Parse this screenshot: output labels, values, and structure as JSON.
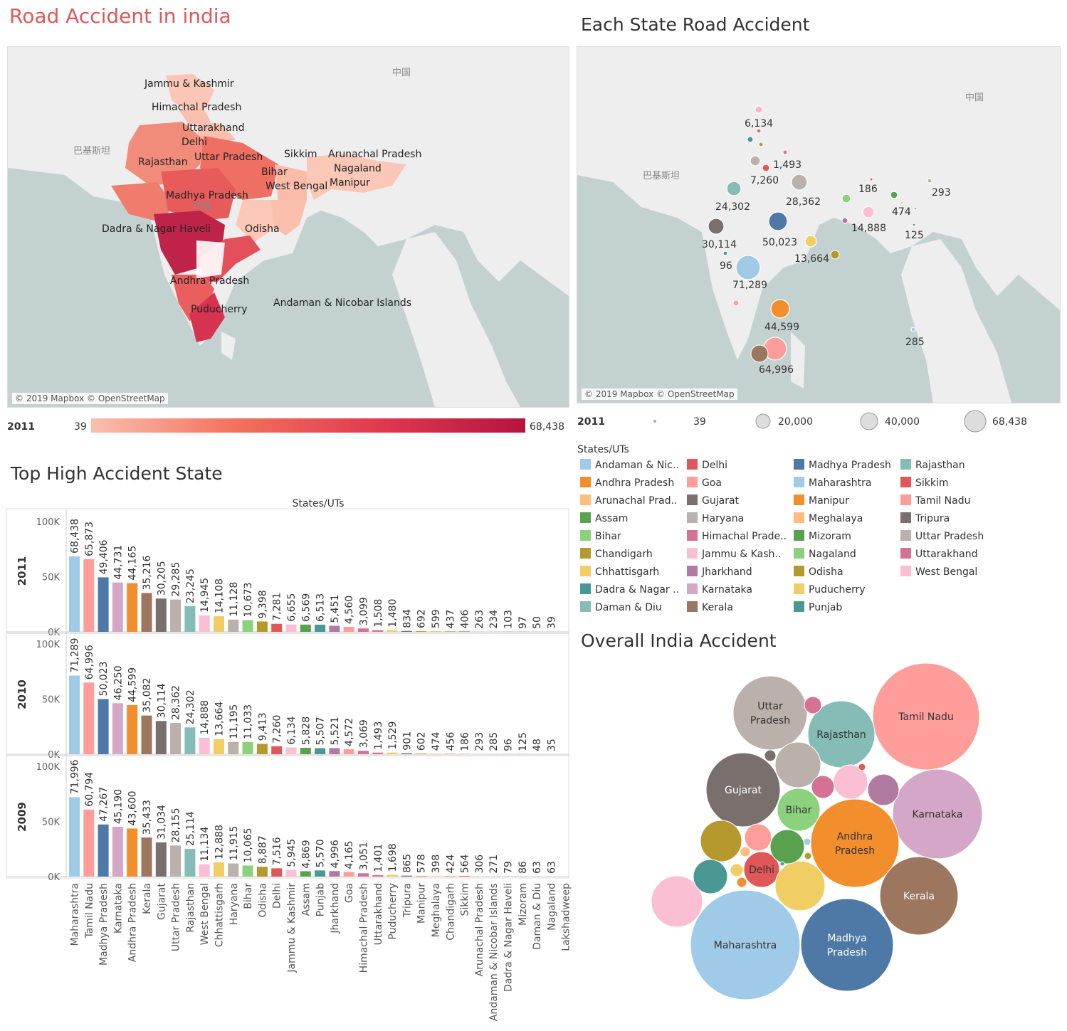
{
  "titles": {
    "map1": "Road Accident in india",
    "map2": "Each State Road Accident",
    "bar": "Top High Accident State",
    "bubble": "Overall India Accident"
  },
  "map_credit": "© 2019 Mapbox © OpenStreetMap",
  "map1_labels": [
    "Jammu & Kashmir",
    "Himachal Pradesh",
    "Uttarakhand",
    "Delhi",
    "Rajasthan",
    "Uttar Pradesh",
    "Sikkim",
    "Arunachal Pradesh",
    "Nagaland",
    "Bihar",
    "West Bengal",
    "Manipur",
    "Madhya Pradesh",
    "Dadra & Nagar Haveli",
    "Odisha",
    "Andhra Pradesh",
    "Andaman & Nicobar Islands",
    "Puducherry"
  ],
  "map_basenames": {
    "china": "中国",
    "pakistan": "巴基斯坦",
    "india": "印度"
  },
  "color_legend": {
    "label": "2011",
    "min": "39",
    "max": "68,438",
    "colors": {
      "low": "#fbbfae",
      "high": "#b5143f"
    }
  },
  "size_legend": {
    "label": "2011",
    "items": [
      "39",
      "20,000",
      "40,000",
      "68,438"
    ]
  },
  "map2_bubbles": [
    {
      "label": "6,134",
      "color": "#f9b3c9"
    },
    {
      "label": "1,493",
      "color": "#e15759"
    },
    {
      "label": "7,260",
      "color": "#bab0ac"
    },
    {
      "label": "28,362",
      "color": "#bab0ac"
    },
    {
      "label": "24,302",
      "color": "#86bcb6"
    },
    {
      "label": "186",
      "color": "#8cd17d"
    },
    {
      "label": "293",
      "color": "#8cd17d"
    },
    {
      "label": "474",
      "color": "#59a14f"
    },
    {
      "label": "14,888",
      "color": "#fabfd2"
    },
    {
      "label": "125",
      "color": "#59a14f"
    },
    {
      "label": "30,114",
      "color": "#79706e"
    },
    {
      "label": "50,023",
      "color": "#4e79a7"
    },
    {
      "label": "13,664",
      "color": "#f1ce63"
    },
    {
      "label": "96",
      "color": "#499894"
    },
    {
      "label": "71,289",
      "color": "#a0cbe8"
    },
    {
      "label": "44,599",
      "color": "#f28e2b"
    },
    {
      "label": "285",
      "color": "#a0cbe8"
    },
    {
      "label": "64,996",
      "color": "#ff9d9a"
    }
  ],
  "states_legend": {
    "title": "States/UTs",
    "items": [
      {
        "name": "Andaman & Nic..",
        "color": "#a0cbe8"
      },
      {
        "name": "Andhra Pradesh",
        "color": "#f28e2b"
      },
      {
        "name": "Arunachal Prad..",
        "color": "#ffbe7d"
      },
      {
        "name": "Assam",
        "color": "#59a14f"
      },
      {
        "name": "Bihar",
        "color": "#8cd17d"
      },
      {
        "name": "Chandigarh",
        "color": "#b6992d"
      },
      {
        "name": "Chhattisgarh",
        "color": "#f1ce63"
      },
      {
        "name": "Dadra & Nagar ..",
        "color": "#499894"
      },
      {
        "name": "Daman & Diu",
        "color": "#86bcb6"
      },
      {
        "name": "Delhi",
        "color": "#e15759"
      },
      {
        "name": "Goa",
        "color": "#ff9d9a"
      },
      {
        "name": "Gujarat",
        "color": "#79706e"
      },
      {
        "name": "Haryana",
        "color": "#bab0ac"
      },
      {
        "name": "Himachal Prade..",
        "color": "#d37295"
      },
      {
        "name": "Jammu & Kash..",
        "color": "#fabfd2"
      },
      {
        "name": "Jharkhand",
        "color": "#b07aa1"
      },
      {
        "name": "Karnataka",
        "color": "#d4a6c8"
      },
      {
        "name": "Kerala",
        "color": "#9d7660"
      },
      {
        "name": "Madhya Pradesh",
        "color": "#4e79a7"
      },
      {
        "name": "Maharashtra",
        "color": "#a0cbe8"
      },
      {
        "name": "Manipur",
        "color": "#f28e2b"
      },
      {
        "name": "Meghalaya",
        "color": "#ffbe7d"
      },
      {
        "name": "Mizoram",
        "color": "#59a14f"
      },
      {
        "name": "Nagaland",
        "color": "#8cd17d"
      },
      {
        "name": "Odisha",
        "color": "#b6992d"
      },
      {
        "name": "Puducherry",
        "color": "#f1ce63"
      },
      {
        "name": "Punjab",
        "color": "#499894"
      },
      {
        "name": "Rajasthan",
        "color": "#86bcb6"
      },
      {
        "name": "Sikkim",
        "color": "#e15759"
      },
      {
        "name": "Tamil Nadu",
        "color": "#ff9d9a"
      },
      {
        "name": "Tripura",
        "color": "#79706e"
      },
      {
        "name": "Uttar Pradesh",
        "color": "#bab0ac"
      },
      {
        "name": "Uttarakhand",
        "color": "#d37295"
      },
      {
        "name": "West Bengal",
        "color": "#fabfd2"
      }
    ]
  },
  "chart_data": [
    {
      "type": "bar",
      "title": "Top High Accident State",
      "xlabel": "States/UTs",
      "ylim": [
        0,
        100000
      ],
      "ytick_labels": [
        "100K",
        "50K",
        "0K"
      ],
      "categories": [
        "Maharashtra",
        "Tamil Nadu",
        "Madhya Pradesh",
        "Karnataka",
        "Andhra Pradesh",
        "Kerala",
        "Gujarat",
        "Uttar Pradesh",
        "Rajasthan",
        "West Bengal",
        "Chhattisgarh",
        "Haryana",
        "Bihar",
        "Odisha",
        "Delhi",
        "Jammu & Kashmir",
        "Assam",
        "Punjab",
        "Jharkhand",
        "Goa",
        "Himachal Pradesh",
        "Uttarakhand",
        "Puducherry",
        "Tripura",
        "Manipur",
        "Meghalaya",
        "Chandigarh",
        "Sikkim",
        "Arunachal Pradesh",
        "Andaman & Nicobar Islands",
        "Dadra & Nagar Haveli",
        "Mizoram",
        "Daman & Diu",
        "Nagaland",
        "Lakshadweep"
      ],
      "colors": [
        "#a0cbe8",
        "#ff9d9a",
        "#4e79a7",
        "#d4a6c8",
        "#f28e2b",
        "#9d7660",
        "#79706e",
        "#bab0ac",
        "#86bcb6",
        "#fabfd2",
        "#f1ce63",
        "#bab0ac",
        "#8cd17d",
        "#b6992d",
        "#e15759",
        "#fabfd2",
        "#59a14f",
        "#499894",
        "#b07aa1",
        "#ff9d9a",
        "#d37295",
        "#d37295",
        "#f1ce63",
        "#79706e",
        "#f28e2b",
        "#ffbe7d",
        "#b6992d",
        "#e15759",
        "#ffbe7d",
        "#a0cbe8",
        "#499894",
        "#59a14f",
        "#86bcb6",
        "#8cd17d",
        "#a0cbe8"
      ],
      "series": [
        {
          "name": "2011",
          "values": [
            68438,
            65873,
            49406,
            44731,
            44165,
            35216,
            30205,
            29285,
            23245,
            14945,
            14108,
            11128,
            10673,
            9398,
            7281,
            6655,
            6569,
            6513,
            5451,
            4560,
            3099,
            1508,
            1480,
            834,
            692,
            599,
            437,
            406,
            263,
            234,
            103,
            97,
            50,
            39,
            null
          ],
          "labels": [
            "68,438",
            "65,873",
            "49,406",
            "44,731",
            "44,165",
            "35,216",
            "30,205",
            "29,285",
            "23,245",
            "14,945",
            "14,108",
            "11,128",
            "10,673",
            "9,398",
            "7,281",
            "6,655",
            "6,569",
            "6,513",
            "5,451",
            "4,560",
            "3,099",
            "1,508",
            "1,480",
            "834",
            "692",
            "599",
            "437",
            "406",
            "263",
            "234",
            "103",
            "97",
            "50",
            "39",
            ""
          ]
        },
        {
          "name": "2010",
          "values": [
            71289,
            64996,
            50023,
            46250,
            44599,
            35082,
            30114,
            28362,
            24302,
            14888,
            13664,
            11195,
            11033,
            9413,
            7260,
            6134,
            5828,
            5507,
            5521,
            4572,
            3069,
            1493,
            1529,
            901,
            602,
            474,
            456,
            186,
            293,
            285,
            96,
            125,
            48,
            35,
            null
          ],
          "labels": [
            "71,289",
            "64,996",
            "50,023",
            "46,250",
            "44,599",
            "35,082",
            "30,114",
            "28,362",
            "24,302",
            "14,888",
            "13,664",
            "11,195",
            "11,033",
            "9,413",
            "7,260",
            "6,134",
            "5,828",
            "5,507",
            "5,521",
            "4,572",
            "3,069",
            "1,493",
            "1,529",
            "901",
            "602",
            "474",
            "456",
            "186",
            "293",
            "285",
            "96",
            "125",
            "48",
            "35",
            ""
          ]
        },
        {
          "name": "2009",
          "values": [
            71996,
            60794,
            47267,
            45190,
            43600,
            35433,
            31034,
            28155,
            25114,
            11134,
            12888,
            11915,
            10065,
            8887,
            7516,
            5945,
            4869,
            5570,
            4996,
            4165,
            3051,
            1401,
            1698,
            865,
            578,
            398,
            424,
            564,
            306,
            271,
            79,
            86,
            63,
            63,
            null
          ],
          "labels": [
            "71,996",
            "60,794",
            "47,267",
            "45,190",
            "43,600",
            "35,433",
            "31,034",
            "28,155",
            "25,114",
            "11,134",
            "12,888",
            "11,915",
            "10,065",
            "8,887",
            "7,516",
            "5,945",
            "4,869",
            "5,570",
            "4,996",
            "4,165",
            "3,051",
            "1,401",
            "1,698",
            "865",
            "578",
            "398",
            "424",
            "564",
            "306",
            "271",
            "79",
            "86",
            "63",
            "63",
            ""
          ]
        }
      ]
    },
    {
      "type": "scatter",
      "title": "Overall India Accident",
      "bubbles": [
        {
          "name": "Tamil Nadu",
          "color": "#ff9d9a",
          "label": "Tamil Nadu"
        },
        {
          "name": "Uttar Pradesh",
          "color": "#bab0ac",
          "label": "Uttar Pradesh"
        },
        {
          "name": "Rajasthan",
          "color": "#86bcb6",
          "label": "Rajasthan"
        },
        {
          "name": "Gujarat",
          "color": "#79706e",
          "label": "Gujarat"
        },
        {
          "name": "Haryana",
          "color": "#bab0ac",
          "label": ""
        },
        {
          "name": "Bihar",
          "color": "#8cd17d",
          "label": "Bihar"
        },
        {
          "name": "Karnataka",
          "color": "#d4a6c8",
          "label": "Karnataka"
        },
        {
          "name": "Andhra Pradesh",
          "color": "#f28e2b",
          "label": "Andhra Pradesh"
        },
        {
          "name": "Kerala",
          "color": "#9d7660",
          "label": "Kerala"
        },
        {
          "name": "Delhi",
          "color": "#e15759",
          "label": "Delhi"
        },
        {
          "name": "Maharashtra",
          "color": "#a0cbe8",
          "label": "Maharashtra"
        },
        {
          "name": "Madhya Pradesh",
          "color": "#4e79a7",
          "label": "Madhya Pradesh"
        },
        {
          "name": "West Bengal",
          "color": "#fabfd2",
          "label": ""
        },
        {
          "name": "Chhattisgarh",
          "color": "#f1ce63",
          "label": ""
        },
        {
          "name": "Odisha",
          "color": "#b6992d",
          "label": ""
        },
        {
          "name": "Punjab",
          "color": "#499894",
          "label": ""
        },
        {
          "name": "Jharkhand",
          "color": "#b07aa1",
          "label": ""
        },
        {
          "name": "Jammu & Kashmir",
          "color": "#fabfd2",
          "label": ""
        },
        {
          "name": "Himachal Pradesh",
          "color": "#d37295",
          "label": ""
        },
        {
          "name": "Assam",
          "color": "#59a14f",
          "label": ""
        },
        {
          "name": "Goa",
          "color": "#ff9d9a",
          "label": ""
        },
        {
          "name": "Uttarakhand",
          "color": "#d37295",
          "label": ""
        }
      ]
    }
  ]
}
